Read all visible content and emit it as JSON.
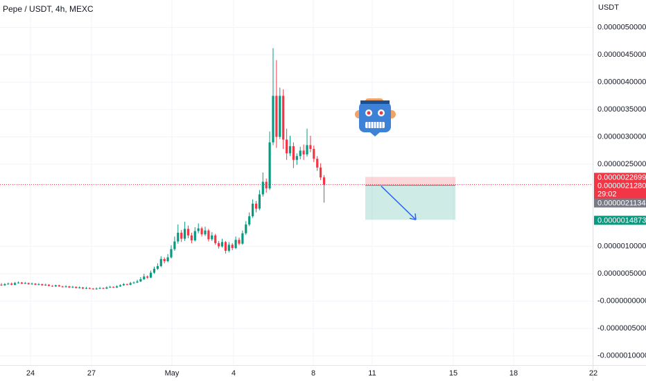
{
  "chart_data": {
    "type": "candlestick",
    "title": "Pepe / USDT, 4h, MEXC",
    "currency": "USDT",
    "up_color": "#089981",
    "down_color": "#f23645",
    "ylim": [
      -1.18e-06,
      5.5e-06
    ],
    "yticks": [
      {
        "value": 5e-06,
        "label": "0.0000050000"
      },
      {
        "value": 4.5e-06,
        "label": "0.0000045000"
      },
      {
        "value": 4e-06,
        "label": "0.0000040000"
      },
      {
        "value": 3.5e-06,
        "label": "0.0000035000"
      },
      {
        "value": 3e-06,
        "label": "0.0000030000"
      },
      {
        "value": 2.5e-06,
        "label": "0.0000025000"
      },
      {
        "value": 1e-06,
        "label": "0.0000010000"
      },
      {
        "value": 5e-07,
        "label": "0.0000005000"
      },
      {
        "value": 0,
        "label": "-0.0000000000"
      },
      {
        "value": -5e-07,
        "label": "-0.0000005000"
      },
      {
        "value": -1e-06,
        "label": "-0.0000010000"
      }
    ],
    "x_labels": [
      "24",
      "27",
      "May",
      "4",
      "8",
      "11",
      "15",
      "18",
      "22"
    ],
    "grid": true,
    "ohlc": [
      [
        3e-07,
        3.3e-07,
        2.8e-07,
        2.9e-07
      ],
      [
        2.9e-07,
        3.3e-07,
        2.8e-07,
        3.1e-07
      ],
      [
        3.1e-07,
        3.4e-07,
        3e-07,
        3.2e-07
      ],
      [
        3.2e-07,
        3.4e-07,
        2.9e-07,
        3e-07
      ],
      [
        3e-07,
        3.5e-07,
        2.9e-07,
        3.3e-07
      ],
      [
        3.3e-07,
        3.6e-07,
        3.2e-07,
        3.4e-07
      ],
      [
        3.4e-07,
        3.5e-07,
        3.1e-07,
        3.2e-07
      ],
      [
        3.2e-07,
        3.5e-07,
        3.1e-07,
        3.3e-07
      ],
      [
        3.3e-07,
        3.4e-07,
        3e-07,
        3.1e-07
      ],
      [
        3.1e-07,
        3.4e-07,
        3e-07,
        3.2e-07
      ],
      [
        3.2e-07,
        3.3e-07,
        2.9e-07,
        3e-07
      ],
      [
        3e-07,
        3.3e-07,
        2.9e-07,
        3.1e-07
      ],
      [
        3.1e-07,
        3.2e-07,
        2.8e-07,
        2.9e-07
      ],
      [
        2.9e-07,
        3.2e-07,
        2.8e-07,
        3e-07
      ],
      [
        3e-07,
        3.1e-07,
        2.7e-07,
        2.8e-07
      ],
      [
        2.8e-07,
        2.9e-07,
        2.6e-07,
        2.7e-07
      ],
      [
        2.7e-07,
        3e-07,
        2.6e-07,
        2.9e-07
      ],
      [
        2.9e-07,
        3e-07,
        2.6e-07,
        2.7e-07
      ],
      [
        2.7e-07,
        2.8e-07,
        2.5e-07,
        2.6e-07
      ],
      [
        2.6e-07,
        2.9e-07,
        2.5e-07,
        2.7e-07
      ],
      [
        2.7e-07,
        2.8e-07,
        2.4e-07,
        2.5e-07
      ],
      [
        2.5e-07,
        2.8e-07,
        2.4e-07,
        2.6e-07
      ],
      [
        2.6e-07,
        2.7e-07,
        2.3e-07,
        2.4e-07
      ],
      [
        2.4e-07,
        2.7e-07,
        2.3e-07,
        2.5e-07
      ],
      [
        2.5e-07,
        2.6e-07,
        2.2e-07,
        2.3e-07
      ],
      [
        2.3e-07,
        2.6e-07,
        2.2e-07,
        2.4e-07
      ],
      [
        2.4e-07,
        2.5e-07,
        2.2e-07,
        2.3e-07
      ],
      [
        2.3e-07,
        2.4e-07,
        2.1e-07,
        2.2e-07
      ],
      [
        2.2e-07,
        2.5e-07,
        2.1e-07,
        2.3e-07
      ],
      [
        2.3e-07,
        2.6e-07,
        2.2e-07,
        2.4e-07
      ],
      [
        2.4e-07,
        2.5e-07,
        2.2e-07,
        2.3e-07
      ],
      [
        2.3e-07,
        2.7e-07,
        2.2e-07,
        2.5e-07
      ],
      [
        2.5e-07,
        2.8e-07,
        2.4e-07,
        2.6e-07
      ],
      [
        2.6e-07,
        2.7e-07,
        2.4e-07,
        2.5e-07
      ],
      [
        2.5e-07,
        2.9e-07,
        2.4e-07,
        2.7e-07
      ],
      [
        2.7e-07,
        3.1e-07,
        2.6e-07,
        2.9e-07
      ],
      [
        2.9e-07,
        3.3e-07,
        2.8e-07,
        3.1e-07
      ],
      [
        3.1e-07,
        3.2e-07,
        2.9e-07,
        3e-07
      ],
      [
        3e-07,
        3.5e-07,
        2.9e-07,
        3.3e-07
      ],
      [
        3.3e-07,
        3.6e-07,
        3.2e-07,
        3.4e-07
      ],
      [
        3.4e-07,
        3.9e-07,
        3.3e-07,
        3.6e-07
      ],
      [
        3.6e-07,
        4.4e-07,
        3.5e-07,
        4e-07
      ],
      [
        4e-07,
        5e-07,
        3.9e-07,
        4.5e-07
      ],
      [
        4.5e-07,
        4.7e-07,
        4.1e-07,
        4.3e-07
      ],
      [
        4.3e-07,
        5.6e-07,
        4.2e-07,
        5.2e-07
      ],
      [
        5.2e-07,
        6.3e-07,
        5e-07,
        5.9e-07
      ],
      [
        5.9e-07,
        6.9e-07,
        5.7e-07,
        6.4e-07
      ],
      [
        6.4e-07,
        8.2e-07,
        6.2e-07,
        7.7e-07
      ],
      [
        7.7e-07,
        8e-07,
        6.9e-07,
        7.3e-07
      ],
      [
        7.3e-07,
        8.6e-07,
        7.1e-07,
        8e-07
      ],
      [
        8e-07,
        1.02e-06,
        7.8e-07,
        9.5e-07
      ],
      [
        9.5e-07,
        1.18e-06,
        9.2e-07,
        1.09e-06
      ],
      [
        1.09e-06,
        1.4e-06,
        1.05e-06,
        1.25e-06
      ],
      [
        1.25e-06,
        1.3e-06,
        1.08e-06,
        1.14e-06
      ],
      [
        1.14e-06,
        1.45e-06,
        1.1e-06,
        1.32e-06
      ],
      [
        1.32e-06,
        1.38e-06,
        1.15e-06,
        1.2e-06
      ],
      [
        1.2e-06,
        1.25e-06,
        1.06e-06,
        1.11e-06
      ],
      [
        1.11e-06,
        1.35e-06,
        1.09e-06,
        1.28e-06
      ],
      [
        1.28e-06,
        1.42e-06,
        1.24e-06,
        1.33e-06
      ],
      [
        1.33e-06,
        1.36e-06,
        1.18e-06,
        1.22e-06
      ],
      [
        1.22e-06,
        1.36e-06,
        1.19e-06,
        1.29e-06
      ],
      [
        1.29e-06,
        1.32e-06,
        1.09e-06,
        1.13e-06
      ],
      [
        1.13e-06,
        1.26e-06,
        1.1e-06,
        1.2e-06
      ],
      [
        1.2e-06,
        1.23e-06,
        1.03e-06,
        1.06e-06
      ],
      [
        1.06e-06,
        1.1e-06,
        9.6e-07,
        1e-06
      ],
      [
        1e-06,
        1.14e-06,
        9.8e-07,
        1.08e-06
      ],
      [
        1.08e-06,
        1.1e-06,
        8.7e-07,
        9.2e-07
      ],
      [
        9.2e-07,
        1.08e-06,
        8.9e-07,
        1.03e-06
      ],
      [
        1.03e-06,
        1.06e-06,
        9.3e-07,
        9.7e-07
      ],
      [
        9.7e-07,
        1.18e-06,
        9.5e-07,
        1.12e-06
      ],
      [
        1.12e-06,
        1.16e-06,
        1.02e-06,
        1.05e-06
      ],
      [
        1.05e-06,
        1.29e-06,
        1.03e-06,
        1.24e-06
      ],
      [
        1.24e-06,
        1.46e-06,
        1.21e-06,
        1.4e-06
      ],
      [
        1.4e-06,
        1.62e-06,
        1.37e-06,
        1.55e-06
      ],
      [
        1.55e-06,
        1.86e-06,
        1.52e-06,
        1.78e-06
      ],
      [
        1.78e-06,
        1.83e-06,
        1.62e-06,
        1.69e-06
      ],
      [
        1.69e-06,
        2.03e-06,
        1.66e-06,
        1.95e-06
      ],
      [
        1.95e-06,
        2.35e-06,
        1.91e-06,
        2.18e-06
      ],
      [
        2.18e-06,
        2.24e-06,
        1.98e-06,
        2.06e-06
      ],
      [
        2.06e-06,
        3.1e-06,
        2.03e-06,
        2.9e-06
      ],
      [
        2.9e-06,
        4.62e-06,
        2.85e-06,
        3.75e-06
      ],
      [
        3.75e-06,
        4.4e-06,
        2.8e-06,
        3e-06
      ],
      [
        3e-06,
        3.9e-06,
        2.96e-06,
        3.75e-06
      ],
      [
        3.75e-06,
        3.87e-06,
        2.78e-06,
        2.95e-06
      ],
      [
        2.95e-06,
        3.15e-06,
        2.58e-06,
        2.7e-06
      ],
      [
        2.7e-06,
        3.02e-06,
        2.65e-06,
        2.83e-06
      ],
      [
        2.83e-06,
        2.9e-06,
        2.43e-06,
        2.58e-06
      ],
      [
        2.58e-06,
        2.7e-06,
        2.49e-06,
        2.65e-06
      ],
      [
        2.65e-06,
        2.82e-06,
        2.59e-06,
        2.75e-06
      ],
      [
        2.75e-06,
        2.86e-06,
        2.58e-06,
        2.68e-06
      ],
      [
        2.68e-06,
        3.15e-06,
        2.64e-06,
        2.85e-06
      ],
      [
        2.85e-06,
        3.02e-06,
        2.72e-06,
        2.78e-06
      ],
      [
        2.78e-06,
        2.84e-06,
        2.54e-06,
        2.6e-06
      ],
      [
        2.6e-06,
        2.65e-06,
        2.38e-06,
        2.44e-06
      ],
      [
        2.44e-06,
        2.52e-06,
        2.21e-06,
        2.26e-06
      ],
      [
        2.26e-06,
        2.3e-06,
        1.8e-06,
        2.128e-06
      ]
    ],
    "price_tags": [
      {
        "value": 2.2699e-06,
        "label": "0.0000022699",
        "color": "#f23645"
      },
      {
        "value": 2.128e-06,
        "label": "0.0000021280",
        "color": "#f23645"
      },
      {
        "value": 2.1134e-06,
        "label": "0.0000021134",
        "color": "#787b86"
      },
      {
        "value": 1.4873e-06,
        "label": "0.0000014873",
        "color": "#089981"
      }
    ],
    "countdown": "29:02"
  }
}
